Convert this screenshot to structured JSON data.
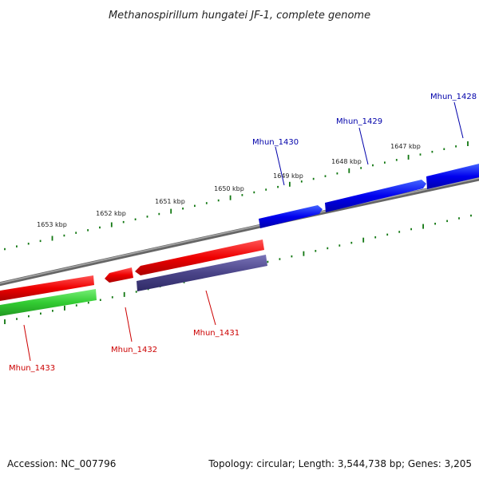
{
  "title": "Methanospirillum hungatei JF-1, complete genome",
  "tick_labels": [
    "1647 kbp",
    "1648 kbp",
    "1649 kbp",
    "1650 kbp",
    "1651 kbp",
    "1652 kbp",
    "1653 kbp"
  ],
  "genes": [
    {
      "name": "Mhun_1428",
      "strand": "forward"
    },
    {
      "name": "Mhun_1429",
      "strand": "forward"
    },
    {
      "name": "Mhun_1430",
      "strand": "forward"
    },
    {
      "name": "Mhun_1431",
      "strand": "reverse"
    },
    {
      "name": "Mhun_1432",
      "strand": "reverse"
    },
    {
      "name": "Mhun_1433",
      "strand": "reverse"
    }
  ],
  "footer": {
    "accession": "Accession: NC_007796",
    "summary": "Topology: circular; Length: 3,544,738 bp; Genes: 3,205"
  },
  "colors": {
    "forward_gene": "#0000dd",
    "reverse_gene": "#ee0000",
    "gene_track_purple": "#4a4488",
    "gene_track_green": "#33cc33",
    "backbone": "#888888",
    "tick": "#117711",
    "forward_label": "#0000aa",
    "reverse_label": "#cc0000"
  }
}
